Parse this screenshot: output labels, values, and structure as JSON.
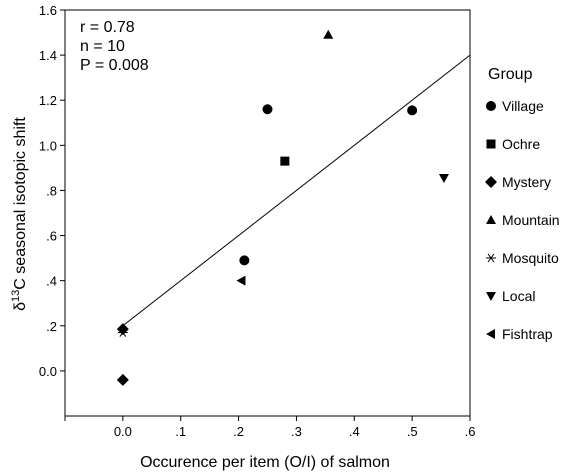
{
  "chart_data": {
    "type": "scatter",
    "xlabel": "Occurence per item (O/I) of salmon",
    "ylabel_parts": {
      "pre": "δ",
      "sup": "13",
      "post": "C seasonal isotopic shift"
    },
    "xlim": [
      -0.1,
      0.6
    ],
    "ylim": [
      -0.2,
      1.6
    ],
    "x_ticks": [
      {
        "value": 0.0,
        "label": "0.0"
      },
      {
        "value": 0.1,
        "label": ".1"
      },
      {
        "value": 0.2,
        "label": ".2"
      },
      {
        "value": 0.3,
        "label": ".3"
      },
      {
        "value": 0.4,
        "label": ".4"
      },
      {
        "value": 0.5,
        "label": ".5"
      },
      {
        "value": 0.6,
        "label": ".6"
      }
    ],
    "y_ticks": [
      {
        "value": 0.0,
        "label": "0.0"
      },
      {
        "value": 0.2,
        "label": ".2"
      },
      {
        "value": 0.4,
        "label": ".4"
      },
      {
        "value": 0.6,
        "label": ".6"
      },
      {
        "value": 0.8,
        "label": ".8"
      },
      {
        "value": 1.0,
        "label": "1.0"
      },
      {
        "value": 1.2,
        "label": "1.2"
      },
      {
        "value": 1.4,
        "label": "1.4"
      },
      {
        "value": 1.6,
        "label": "1.6"
      }
    ],
    "stats": [
      "r = 0.78",
      "n = 10",
      "P = 0.008"
    ],
    "legend": {
      "title": "Group",
      "placement": "right",
      "items": [
        {
          "group": "Village",
          "marker": "circle"
        },
        {
          "group": "Ochre",
          "marker": "square"
        },
        {
          "group": "Mystery",
          "marker": "diamond"
        },
        {
          "group": "Mountain",
          "marker": "triangle-up"
        },
        {
          "group": "Mosquito",
          "marker": "asterisk"
        },
        {
          "group": "Local",
          "marker": "triangle-down"
        },
        {
          "group": "Fishtrap",
          "marker": "triangle-left"
        }
      ]
    },
    "points": [
      {
        "group": "Village",
        "x": 0.25,
        "y": 1.16
      },
      {
        "group": "Village",
        "x": 0.5,
        "y": 1.155
      },
      {
        "group": "Village",
        "x": 0.21,
        "y": 0.49
      },
      {
        "group": "Ochre",
        "x": 0.28,
        "y": 0.93
      },
      {
        "group": "Mystery",
        "x": 0.0,
        "y": 0.185
      },
      {
        "group": "Mystery",
        "x": 0.0,
        "y": -0.04
      },
      {
        "group": "Mountain",
        "x": 0.355,
        "y": 1.49
      },
      {
        "group": "Mosquito",
        "x": 0.0,
        "y": 0.17
      },
      {
        "group": "Local",
        "x": 0.555,
        "y": 0.855
      },
      {
        "group": "Fishtrap",
        "x": 0.205,
        "y": 0.4
      }
    ],
    "regression": {
      "x_start": 0.0,
      "x_end": 0.6,
      "intercept": 0.2,
      "slope": 2.0
    },
    "colors": {
      "marker": "#000000",
      "line": "#000000",
      "background": "#ffffff"
    }
  }
}
